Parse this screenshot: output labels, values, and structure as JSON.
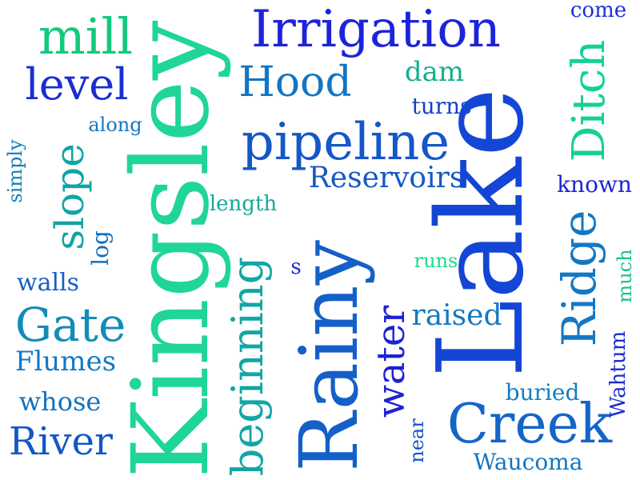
{
  "words": {
    "kingsley": "Kingsley",
    "lake": "Lake",
    "rainy": "Rainy",
    "irrigation": "Irrigation",
    "pipeline": "pipeline",
    "creek": "Creek",
    "mill": "mill",
    "level": "level",
    "hood": "Hood",
    "ditch": "Ditch",
    "ridge": "Ridge",
    "gate": "Gate",
    "slope": "slope",
    "beginning": "beginning",
    "river": "River",
    "water": "water",
    "reservoirs": "Reservoirs",
    "raised": "raised",
    "flumes": "Flumes",
    "whose": "whose",
    "dam": "dam",
    "walls": "walls",
    "turns": "turns",
    "come": "come",
    "along": "along",
    "known": "known",
    "length": "length",
    "simply": "simply",
    "log": "log",
    "s": "s",
    "runs": "runs",
    "much": "much",
    "buried": "buried",
    "wahtum": "Wahtum",
    "near": "near",
    "waucoma": "Waucoma"
  },
  "colors": {
    "background": "#ffffff",
    "palette": [
      "#1d24d8",
      "#1457c8",
      "#1478c4",
      "#12a4a4",
      "#14d196"
    ]
  }
}
